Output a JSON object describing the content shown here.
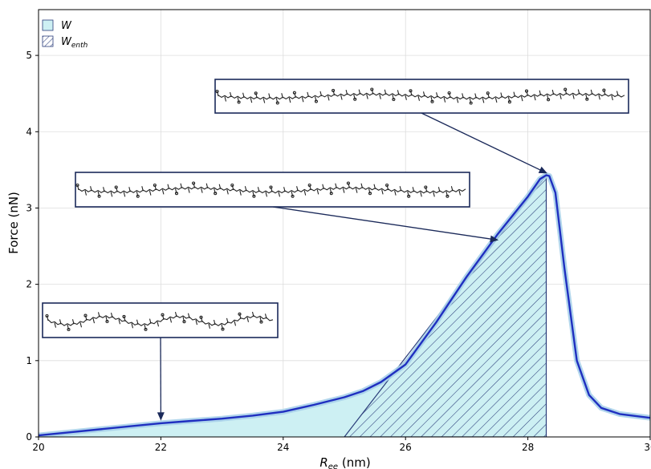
{
  "chart_data": {
    "type": "area",
    "title": "",
    "xlabel": "R",
    "xlabel_sub": "ee",
    "xlabel_unit": " (nm)",
    "ylabel": "Force (nN)",
    "xlim": [
      20,
      30
    ],
    "ylim": [
      0,
      5.6
    ],
    "x_ticks": [
      20,
      22,
      24,
      26,
      28,
      30
    ],
    "y_ticks": [
      0,
      1,
      2,
      3,
      4,
      5
    ],
    "grid": true,
    "legend_position": "top-left",
    "legend": [
      {
        "label": "W",
        "sub": "",
        "style": "fill",
        "color": "#cdf0f3"
      },
      {
        "label": "W",
        "sub": "enth",
        "style": "hatch",
        "color": "#2a3d7a"
      }
    ],
    "series": [
      {
        "x": [
          20.0,
          20.5,
          21.0,
          21.5,
          22.0,
          22.5,
          23.0,
          23.5,
          24.0,
          24.5,
          25.0,
          25.3,
          25.6,
          26.0,
          26.5,
          27.0,
          27.5,
          28.0,
          28.2,
          28.3,
          28.35,
          28.45,
          28.6,
          28.8,
          29.0,
          29.2,
          29.5,
          30.0
        ],
        "y": [
          0.02,
          0.06,
          0.1,
          0.14,
          0.18,
          0.21,
          0.24,
          0.28,
          0.33,
          0.42,
          0.52,
          0.6,
          0.72,
          0.95,
          1.5,
          2.1,
          2.65,
          3.15,
          3.38,
          3.43,
          3.42,
          3.2,
          2.2,
          1.0,
          0.55,
          0.38,
          0.3,
          0.25
        ],
        "color": "#1f2fc0",
        "band_color": "#a8d0ea"
      }
    ],
    "regions": {
      "W_x_end": 28.3,
      "W_enth_x_start": 25.0,
      "W_enth_x_end": 28.3
    },
    "annotations": [
      {
        "name": "conformation-low",
        "point": [
          22.0,
          0.2
        ]
      },
      {
        "name": "conformation-mid",
        "point": [
          27.5,
          2.55
        ]
      },
      {
        "name": "conformation-peak",
        "point": [
          28.3,
          3.43
        ]
      }
    ]
  }
}
